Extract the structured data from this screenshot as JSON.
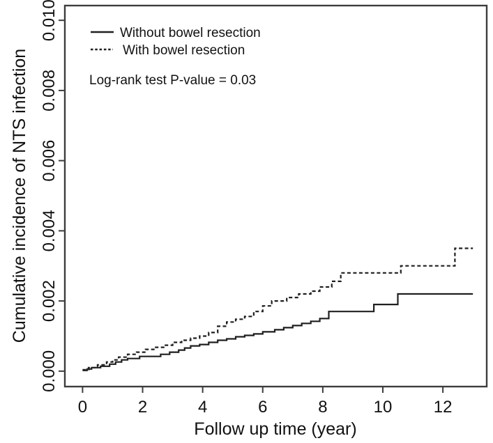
{
  "figure": {
    "background": "#ffffff",
    "axis_color": "#3d3d3d",
    "curve_color": "#1f1f1f",
    "text_color": "#111111"
  },
  "chart_data": {
    "type": "line",
    "subtype": "step-after-survival-cumulative-incidence",
    "title": "",
    "xlabel": "Follow up time (year)",
    "ylabel": "Cumulative incidence of NTS infection",
    "annotation": "Log-rank test P-value = 0.03",
    "legend_position": "top-left",
    "grid": false,
    "xlim": [
      -0.59,
      13.46
    ],
    "ylim": [
      -0.00044,
      0.01042
    ],
    "x_ticks": [
      0,
      2,
      4,
      6,
      8,
      10,
      12
    ],
    "x_tick_labels": [
      "0",
      "2",
      "4",
      "6",
      "8",
      "10",
      "12"
    ],
    "y_ticks": [
      0,
      0.002,
      0.004,
      0.006,
      0.008,
      0.01
    ],
    "y_tick_labels": [
      "0.000",
      "0.002",
      "0.004",
      "0.006",
      "0.008",
      "0.010"
    ],
    "series": [
      {
        "name": "Without bowel resection",
        "line_style": "solid",
        "points": [
          [
            0,
            2e-05
          ],
          [
            0.15,
            6e-05
          ],
          [
            0.3,
            0.0001
          ],
          [
            0.6,
            0.00014
          ],
          [
            0.9,
            0.0002
          ],
          [
            1.1,
            0.00026
          ],
          [
            1.3,
            0.00032
          ],
          [
            1.5,
            0.00036
          ],
          [
            1.9,
            0.00042
          ],
          [
            2.6,
            0.00048
          ],
          [
            2.9,
            0.00054
          ],
          [
            3.2,
            0.0006
          ],
          [
            3.4,
            0.00066
          ],
          [
            3.6,
            0.00072
          ],
          [
            3.9,
            0.00076
          ],
          [
            4.2,
            0.00082
          ],
          [
            4.5,
            0.00088
          ],
          [
            4.8,
            0.00092
          ],
          [
            5.1,
            0.00098
          ],
          [
            5.4,
            0.00102
          ],
          [
            5.7,
            0.00106
          ],
          [
            6.0,
            0.00112
          ],
          [
            6.4,
            0.00118
          ],
          [
            6.7,
            0.00124
          ],
          [
            7.0,
            0.0013
          ],
          [
            7.3,
            0.00136
          ],
          [
            7.6,
            0.00142
          ],
          [
            7.9,
            0.0015
          ],
          [
            8.2,
            0.0017
          ],
          [
            9.7,
            0.0019
          ],
          [
            10.5,
            0.0022
          ],
          [
            13.0,
            0.0022
          ]
        ]
      },
      {
        "name": "With bowel resection",
        "line_style": "dashed",
        "points": [
          [
            0,
            4e-05
          ],
          [
            0.2,
            0.0001
          ],
          [
            0.5,
            0.00018
          ],
          [
            0.8,
            0.00026
          ],
          [
            1.0,
            0.00032
          ],
          [
            1.2,
            0.0004
          ],
          [
            1.5,
            0.00048
          ],
          [
            1.8,
            0.00054
          ],
          [
            2.1,
            0.00062
          ],
          [
            2.4,
            0.00068
          ],
          [
            2.7,
            0.00074
          ],
          [
            3.0,
            0.00082
          ],
          [
            3.3,
            0.00088
          ],
          [
            3.6,
            0.00094
          ],
          [
            3.9,
            0.001
          ],
          [
            4.2,
            0.0011
          ],
          [
            4.5,
            0.00128
          ],
          [
            4.8,
            0.0014
          ],
          [
            5.1,
            0.00148
          ],
          [
            5.4,
            0.00156
          ],
          [
            5.7,
            0.0017
          ],
          [
            6.0,
            0.00186
          ],
          [
            6.3,
            0.002
          ],
          [
            6.8,
            0.0021
          ],
          [
            7.2,
            0.0022
          ],
          [
            7.6,
            0.00228
          ],
          [
            7.9,
            0.0024
          ],
          [
            8.3,
            0.00256
          ],
          [
            8.6,
            0.0028
          ],
          [
            10.6,
            0.003
          ],
          [
            12.4,
            0.0035
          ],
          [
            13.0,
            0.0035
          ]
        ]
      }
    ]
  }
}
